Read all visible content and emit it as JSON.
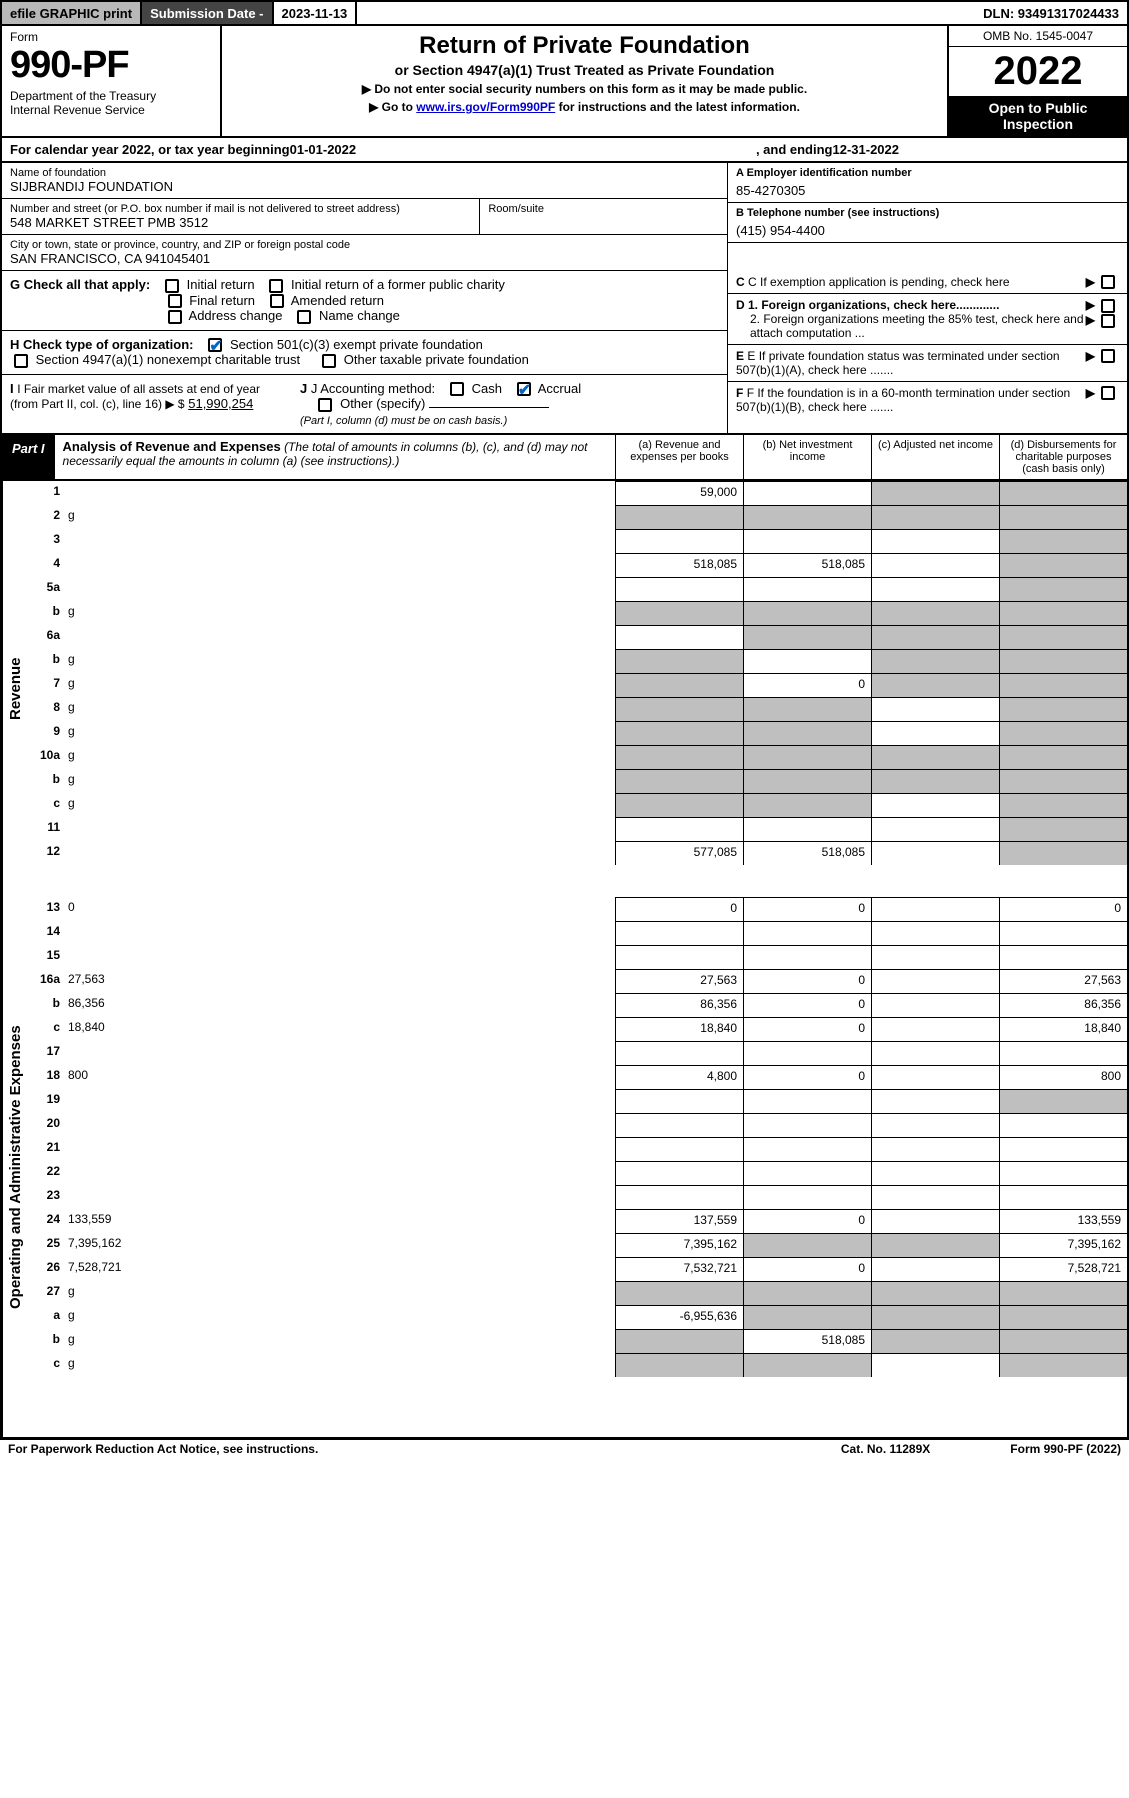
{
  "top": {
    "efile": "efile GRAPHIC print",
    "subdate_label": "Submission Date - ",
    "subdate": "2023-11-13",
    "dln": "DLN: 93491317024433"
  },
  "header": {
    "form": "Form",
    "number": "990-PF",
    "dept": "Department of the Treasury\nInternal Revenue Service",
    "title": "Return of Private Foundation",
    "subtitle": "or Section 4947(a)(1) Trust Treated as Private Foundation",
    "note1": "▶ Do not enter social security numbers on this form as it may be made public.",
    "note2_pre": "▶ Go to ",
    "note2_link": "www.irs.gov/Form990PF",
    "note2_post": " for instructions and the latest information.",
    "omb": "OMB No. 1545-0047",
    "year": "2022",
    "open": "Open to Public Inspection"
  },
  "calyear": {
    "pre": "For calendar year 2022, or tax year beginning ",
    "begin": "01-01-2022",
    "mid": " , and ending ",
    "end": "12-31-2022"
  },
  "info": {
    "name_label": "Name of foundation",
    "name": "SIJBRANDIJ FOUNDATION",
    "addr_label": "Number and street (or P.O. box number if mail is not delivered to street address)",
    "addr": "548 MARKET STREET PMB 3512",
    "room_label": "Room/suite",
    "room": "",
    "city_label": "City or town, state or province, country, and ZIP or foreign postal code",
    "city": "SAN FRANCISCO, CA  941045401",
    "ein_label": "A Employer identification number",
    "ein": "85-4270305",
    "phone_label": "B Telephone number (see instructions)",
    "phone": "(415) 954-4400",
    "c": "C  If exemption application is pending, check here",
    "d1": "D 1. Foreign organizations, check here.............",
    "d2": "2. Foreign organizations meeting the 85% test, check here and attach computation ...",
    "e": "E  If private foundation status was terminated under section 507(b)(1)(A), check here .......",
    "f": "F  If the foundation is in a 60-month termination under section 507(b)(1)(B), check here .......",
    "g_label": "G Check all that apply:",
    "g_opts": [
      "Initial return",
      "Initial return of a former public charity",
      "Final return",
      "Amended return",
      "Address change",
      "Name change"
    ],
    "h_label": "H Check type of organization:",
    "h1": "Section 501(c)(3) exempt private foundation",
    "h2": "Section 4947(a)(1) nonexempt charitable trust",
    "h3": "Other taxable private foundation",
    "i_label": "I Fair market value of all assets at end of year (from Part II, col. (c), line 16) ▶ $",
    "i_val": "51,990,254",
    "j_label": "J Accounting method:",
    "j_cash": "Cash",
    "j_accrual": "Accrual",
    "j_other": "Other (specify)",
    "j_note": "(Part I, column (d) must be on cash basis.)"
  },
  "part1": {
    "label": "Part I",
    "title": "Analysis of Revenue and Expenses",
    "desc": "(The total of amounts in columns (b), (c), and (d) may not necessarily equal the amounts in column (a) (see instructions).)",
    "col_a": "(a)   Revenue and expenses per books",
    "col_b": "(b)   Net investment income",
    "col_c": "(c)   Adjusted net income",
    "col_d": "(d)  Disbursements for charitable purposes (cash basis only)"
  },
  "side": {
    "rev": "Revenue",
    "exp": "Operating and Administrative Expenses"
  },
  "rows": [
    {
      "n": "1",
      "d": "",
      "a": "59,000",
      "b": "",
      "c": "",
      "cg": true,
      "dg": true
    },
    {
      "n": "2",
      "d": "g",
      "a": "g",
      "b": "g",
      "c": "g"
    },
    {
      "n": "3",
      "d": "",
      "a": "",
      "b": "",
      "c": "",
      "dg": true
    },
    {
      "n": "4",
      "d": "",
      "a": "518,085",
      "b": "518,085",
      "c": "",
      "dg": true
    },
    {
      "n": "5a",
      "d": "",
      "a": "",
      "b": "",
      "c": "",
      "dg": true
    },
    {
      "n": "b",
      "d": "g",
      "a": "g",
      "b": "g",
      "c": "g"
    },
    {
      "n": "6a",
      "d": "",
      "a": "",
      "b": "g",
      "c": "g",
      "dg": true
    },
    {
      "n": "b",
      "d": "g",
      "a": "g",
      "b": "",
      "c": "g"
    },
    {
      "n": "7",
      "d": "g",
      "a": "g",
      "b": "0",
      "c": "g"
    },
    {
      "n": "8",
      "d": "g",
      "a": "g",
      "b": "g",
      "c": ""
    },
    {
      "n": "9",
      "d": "g",
      "a": "g",
      "b": "g",
      "c": ""
    },
    {
      "n": "10a",
      "d": "g",
      "a": "g",
      "b": "g",
      "c": "g"
    },
    {
      "n": "b",
      "d": "g",
      "a": "g",
      "b": "g",
      "c": "g"
    },
    {
      "n": "c",
      "d": "g",
      "a": "g",
      "b": "g",
      "c": ""
    },
    {
      "n": "11",
      "d": "",
      "a": "",
      "b": "",
      "c": "",
      "dg": true
    },
    {
      "n": "12",
      "d": "",
      "a": "577,085",
      "b": "518,085",
      "c": "",
      "dg": true
    },
    {
      "n": "13",
      "d": "0",
      "a": "0",
      "b": "0",
      "c": ""
    },
    {
      "n": "14",
      "d": "",
      "a": "",
      "b": "",
      "c": ""
    },
    {
      "n": "15",
      "d": "",
      "a": "",
      "b": "",
      "c": ""
    },
    {
      "n": "16a",
      "d": "27,563",
      "a": "27,563",
      "b": "0",
      "c": ""
    },
    {
      "n": "b",
      "d": "86,356",
      "a": "86,356",
      "b": "0",
      "c": ""
    },
    {
      "n": "c",
      "d": "18,840",
      "a": "18,840",
      "b": "0",
      "c": ""
    },
    {
      "n": "17",
      "d": "",
      "a": "",
      "b": "",
      "c": ""
    },
    {
      "n": "18",
      "d": "800",
      "a": "4,800",
      "b": "0",
      "c": ""
    },
    {
      "n": "19",
      "d": "",
      "a": "",
      "b": "",
      "c": "",
      "dg": true
    },
    {
      "n": "20",
      "d": "",
      "a": "",
      "b": "",
      "c": ""
    },
    {
      "n": "21",
      "d": "",
      "a": "",
      "b": "",
      "c": ""
    },
    {
      "n": "22",
      "d": "",
      "a": "",
      "b": "",
      "c": ""
    },
    {
      "n": "23",
      "d": "",
      "a": "",
      "b": "",
      "c": ""
    },
    {
      "n": "24",
      "d": "133,559",
      "a": "137,559",
      "b": "0",
      "c": ""
    },
    {
      "n": "25",
      "d": "7,395,162",
      "a": "7,395,162",
      "b": "g",
      "c": "g"
    },
    {
      "n": "26",
      "d": "7,528,721",
      "a": "7,532,721",
      "b": "0",
      "c": ""
    },
    {
      "n": "27",
      "d": "g",
      "a": "g",
      "b": "g",
      "c": "g"
    },
    {
      "n": "a",
      "d": "g",
      "a": "-6,955,636",
      "b": "g",
      "c": "g"
    },
    {
      "n": "b",
      "d": "g",
      "a": "g",
      "b": "518,085",
      "c": "g"
    },
    {
      "n": "c",
      "d": "g",
      "a": "g",
      "b": "g",
      "c": ""
    }
  ],
  "footer": {
    "left": "For Paperwork Reduction Act Notice, see instructions.",
    "mid": "Cat. No. 11289X",
    "right": "Form 990-PF (2022)"
  }
}
